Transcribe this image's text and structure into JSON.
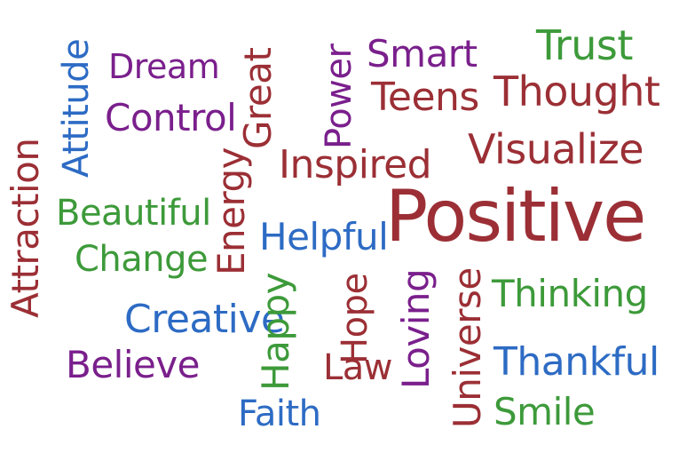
{
  "colors": {
    "red": "#9b2f35",
    "purple": "#7a1f8c",
    "blue": "#2d6bc4",
    "green": "#3d9a3a",
    "background": "#ffffff"
  },
  "words": {
    "positive": "Positive",
    "attitude": "Attitude",
    "dream": "Dream",
    "control": "Control",
    "great": "Great",
    "power": "Power",
    "smart": "Smart",
    "trust": "Trust",
    "teens": "Teens",
    "thought": "Thought",
    "visualize": "Visualize",
    "inspired": "Inspired",
    "energy": "Energy",
    "attraction": "Attraction",
    "beautiful": "Beautiful",
    "change": "Change",
    "helpful": "Helpful",
    "hope": "Hope",
    "happy": "Happy",
    "loving": "Loving",
    "universe": "Universe",
    "thinking": "Thinking",
    "creative": "Creative",
    "believe": "Believe",
    "law": "Law",
    "thankful": "Thankful",
    "faith": "Faith",
    "smile": "Smile"
  }
}
